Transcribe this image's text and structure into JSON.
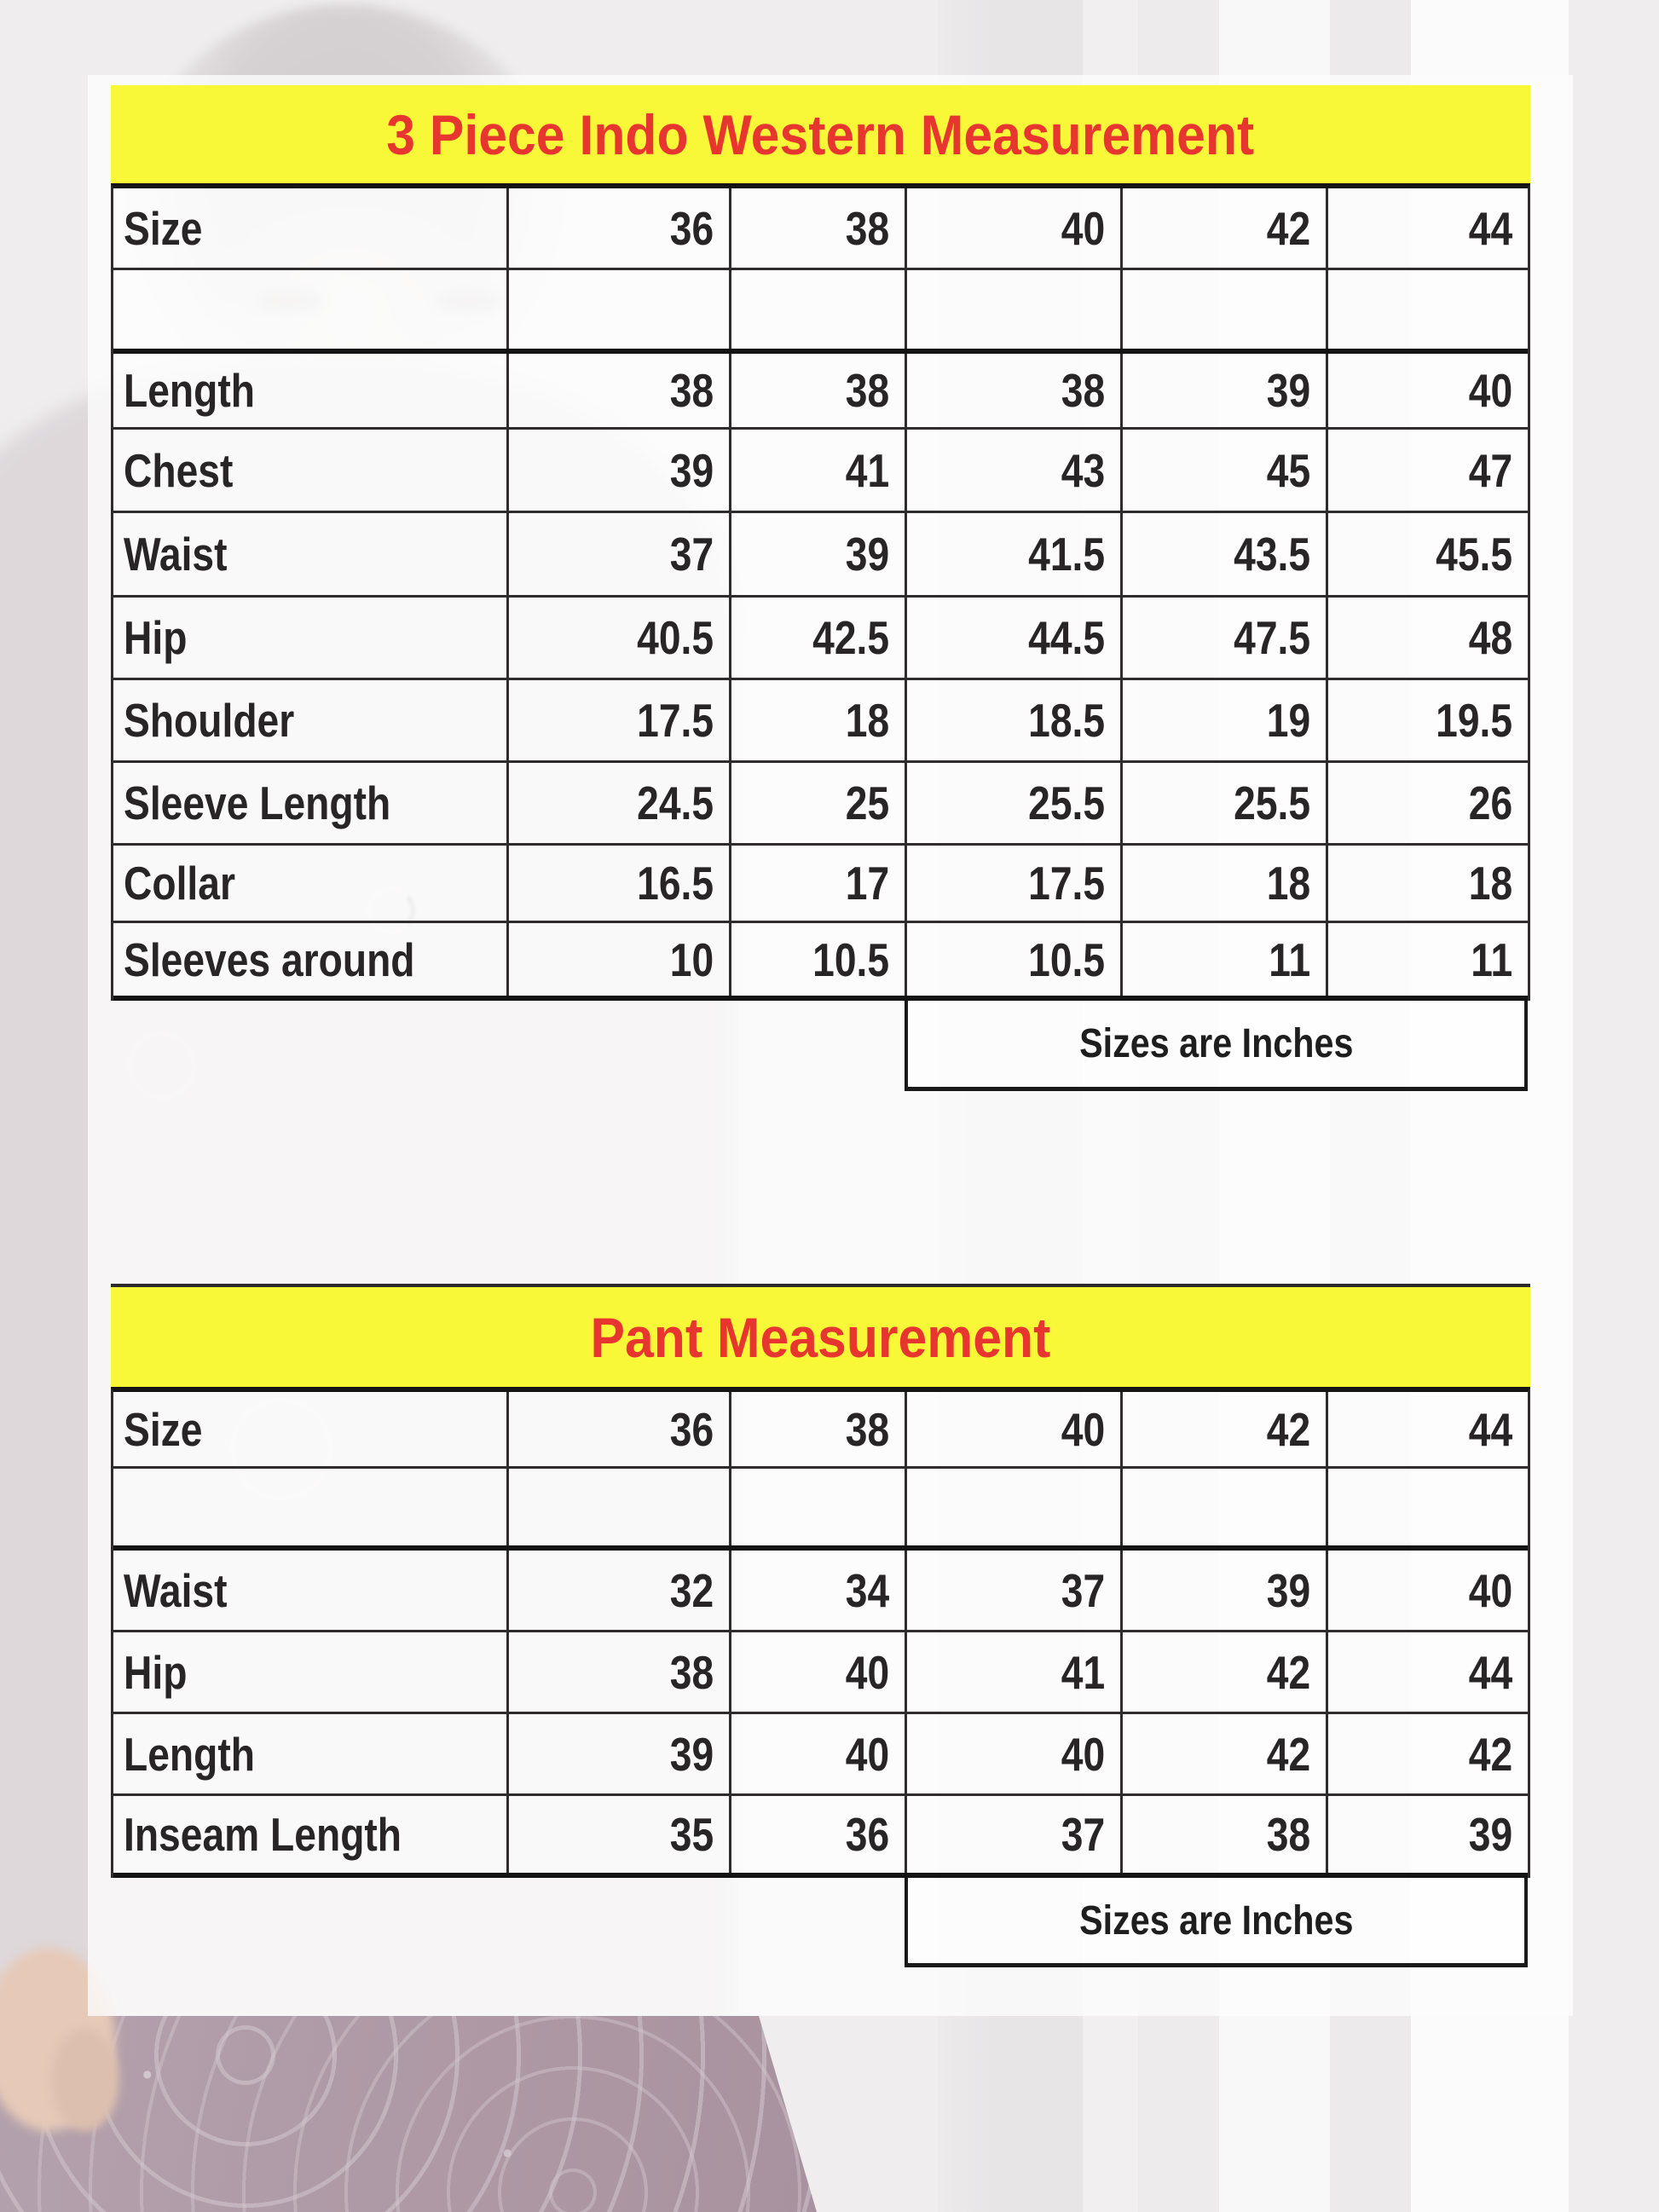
{
  "page": {
    "background": "#efedee",
    "accent_yellow": "#f8f838",
    "accent_red": "#e73530",
    "text_color": "#272525",
    "unit_note": "Sizes are Inches"
  },
  "tables": [
    {
      "title": "3 Piece Indo Western Measurement",
      "rows": [
        {
          "label": "Size",
          "values": [
            "36",
            "38",
            "40",
            "42",
            "44"
          ]
        },
        {
          "label": "",
          "values": [
            "",
            "",
            "",
            "",
            ""
          ]
        },
        {
          "label": "Length",
          "values": [
            "38",
            "38",
            "38",
            "39",
            "40"
          ]
        },
        {
          "label": "Chest",
          "values": [
            "39",
            "41",
            "43",
            "45",
            "47"
          ]
        },
        {
          "label": "Waist",
          "values": [
            "37",
            "39",
            "41.5",
            "43.5",
            "45.5"
          ]
        },
        {
          "label": "Hip",
          "values": [
            "40.5",
            "42.5",
            "44.5",
            "47.5",
            "48"
          ]
        },
        {
          "label": "Shoulder",
          "values": [
            "17.5",
            "18",
            "18.5",
            "19",
            "19.5"
          ]
        },
        {
          "label": "Sleeve Length",
          "values": [
            "24.5",
            "25",
            "25.5",
            "25.5",
            "26"
          ]
        },
        {
          "label": "Collar",
          "values": [
            "16.5",
            "17",
            "17.5",
            "18",
            "18"
          ]
        },
        {
          "label": "Sleeves around",
          "values": [
            "10",
            "10.5",
            "10.5",
            "11",
            "11"
          ]
        }
      ],
      "footnote": "Sizes are Inches"
    },
    {
      "title": "Pant Measurement",
      "rows": [
        {
          "label": "Size",
          "values": [
            "36",
            "38",
            "40",
            "42",
            "44"
          ]
        },
        {
          "label": "",
          "values": [
            "",
            "",
            "",
            "",
            ""
          ]
        },
        {
          "label": "Waist",
          "values": [
            "32",
            "34",
            "37",
            "39",
            "40"
          ]
        },
        {
          "label": "Hip",
          "values": [
            "38",
            "40",
            "41",
            "42",
            "44"
          ]
        },
        {
          "label": "Length",
          "values": [
            "39",
            "40",
            "40",
            "42",
            "42"
          ]
        },
        {
          "label": "Inseam Length",
          "values": [
            "35",
            "36",
            "37",
            "38",
            "39"
          ]
        }
      ],
      "footnote": "Sizes are Inches"
    }
  ]
}
